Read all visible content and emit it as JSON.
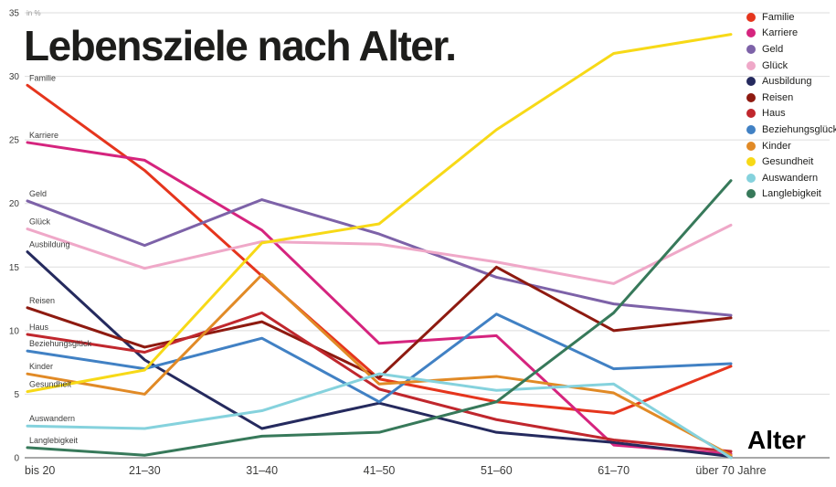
{
  "chart_data": {
    "type": "line",
    "title": "Lebensziele nach Alter.",
    "xlabel": "Alter",
    "ylabel": "in %",
    "ylim": [
      0,
      35
    ],
    "yticks": [
      0,
      5,
      10,
      15,
      20,
      25,
      30,
      35
    ],
    "grid": true,
    "legend_position": "top-right",
    "gridline_color": "#dddddd",
    "baseline_color": "#8c8c8c",
    "categories": [
      "bis 20",
      "21–30",
      "31–40",
      "41–50",
      "51–60",
      "61–70",
      "über 70 Jahre"
    ],
    "series": [
      {
        "name": "Familie",
        "color": "#e5351d",
        "values": [
          29.3,
          22.6,
          14.3,
          6.2,
          4.4,
          3.5,
          7.2
        ]
      },
      {
        "name": "Karriere",
        "color": "#d5247e",
        "values": [
          24.8,
          23.4,
          17.9,
          9.0,
          9.6,
          1.0,
          0.3
        ]
      },
      {
        "name": "Geld",
        "color": "#7d62a8",
        "values": [
          20.2,
          16.7,
          20.3,
          17.6,
          14.2,
          12.1,
          11.2
        ]
      },
      {
        "name": "Glück",
        "color": "#efa8c8",
        "values": [
          18.0,
          14.9,
          17.0,
          16.8,
          15.4,
          13.7,
          18.3
        ]
      },
      {
        "name": "Ausbildung",
        "color": "#252a5e",
        "values": [
          16.2,
          7.7,
          2.3,
          4.3,
          2.0,
          1.2,
          0.1
        ]
      },
      {
        "name": "Reisen",
        "color": "#8e1a10",
        "values": [
          11.8,
          8.7,
          10.7,
          6.3,
          15.0,
          10.0,
          11.0
        ]
      },
      {
        "name": "Haus",
        "color": "#c0272d",
        "values": [
          9.7,
          8.3,
          11.4,
          5.4,
          3.0,
          1.4,
          0.5
        ]
      },
      {
        "name": "Beziehungsglück",
        "color": "#4181c4",
        "values": [
          8.4,
          7.0,
          9.4,
          4.4,
          11.3,
          7.0,
          7.4
        ]
      },
      {
        "name": "Kinder",
        "color": "#e18a26",
        "values": [
          6.6,
          5.0,
          14.4,
          5.8,
          6.4,
          5.1,
          0.2
        ]
      },
      {
        "name": "Gesundheit",
        "color": "#f7d917",
        "values": [
          5.2,
          6.9,
          16.9,
          18.4,
          25.8,
          31.8,
          33.3
        ]
      },
      {
        "name": "Auswandern",
        "color": "#85d2dd",
        "values": [
          2.5,
          2.3,
          3.7,
          6.6,
          5.3,
          5.8,
          0.0
        ]
      },
      {
        "name": "Langlebigkeit",
        "color": "#37795a",
        "values": [
          0.8,
          0.2,
          1.7,
          2.0,
          4.4,
          11.4,
          21.8
        ]
      }
    ]
  }
}
